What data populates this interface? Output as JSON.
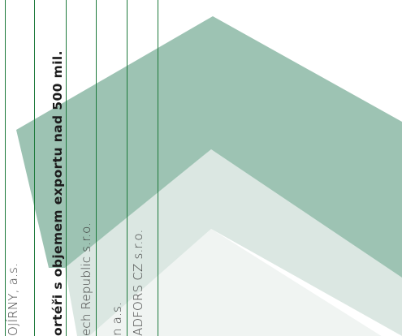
{
  "colors": {
    "rule_green": "#1e7a3c",
    "chevron_dark": "#9dc3b3",
    "chevron_mid": "#dbe7e2",
    "chevron_light": "#f0f4f2"
  },
  "strips": [
    {
      "text": "OJÍRNY, a.s.",
      "emphasis": false
    },
    {
      "text": "ortéři s objemem exportu nad 500 mil.",
      "emphasis": true
    },
    {
      "text": "ech Republic s.r.o.",
      "emphasis": false
    },
    {
      "text": "n a.s.",
      "emphasis": false
    },
    {
      "text": "ADFORS CZ s.r.o.",
      "emphasis": false
    }
  ]
}
